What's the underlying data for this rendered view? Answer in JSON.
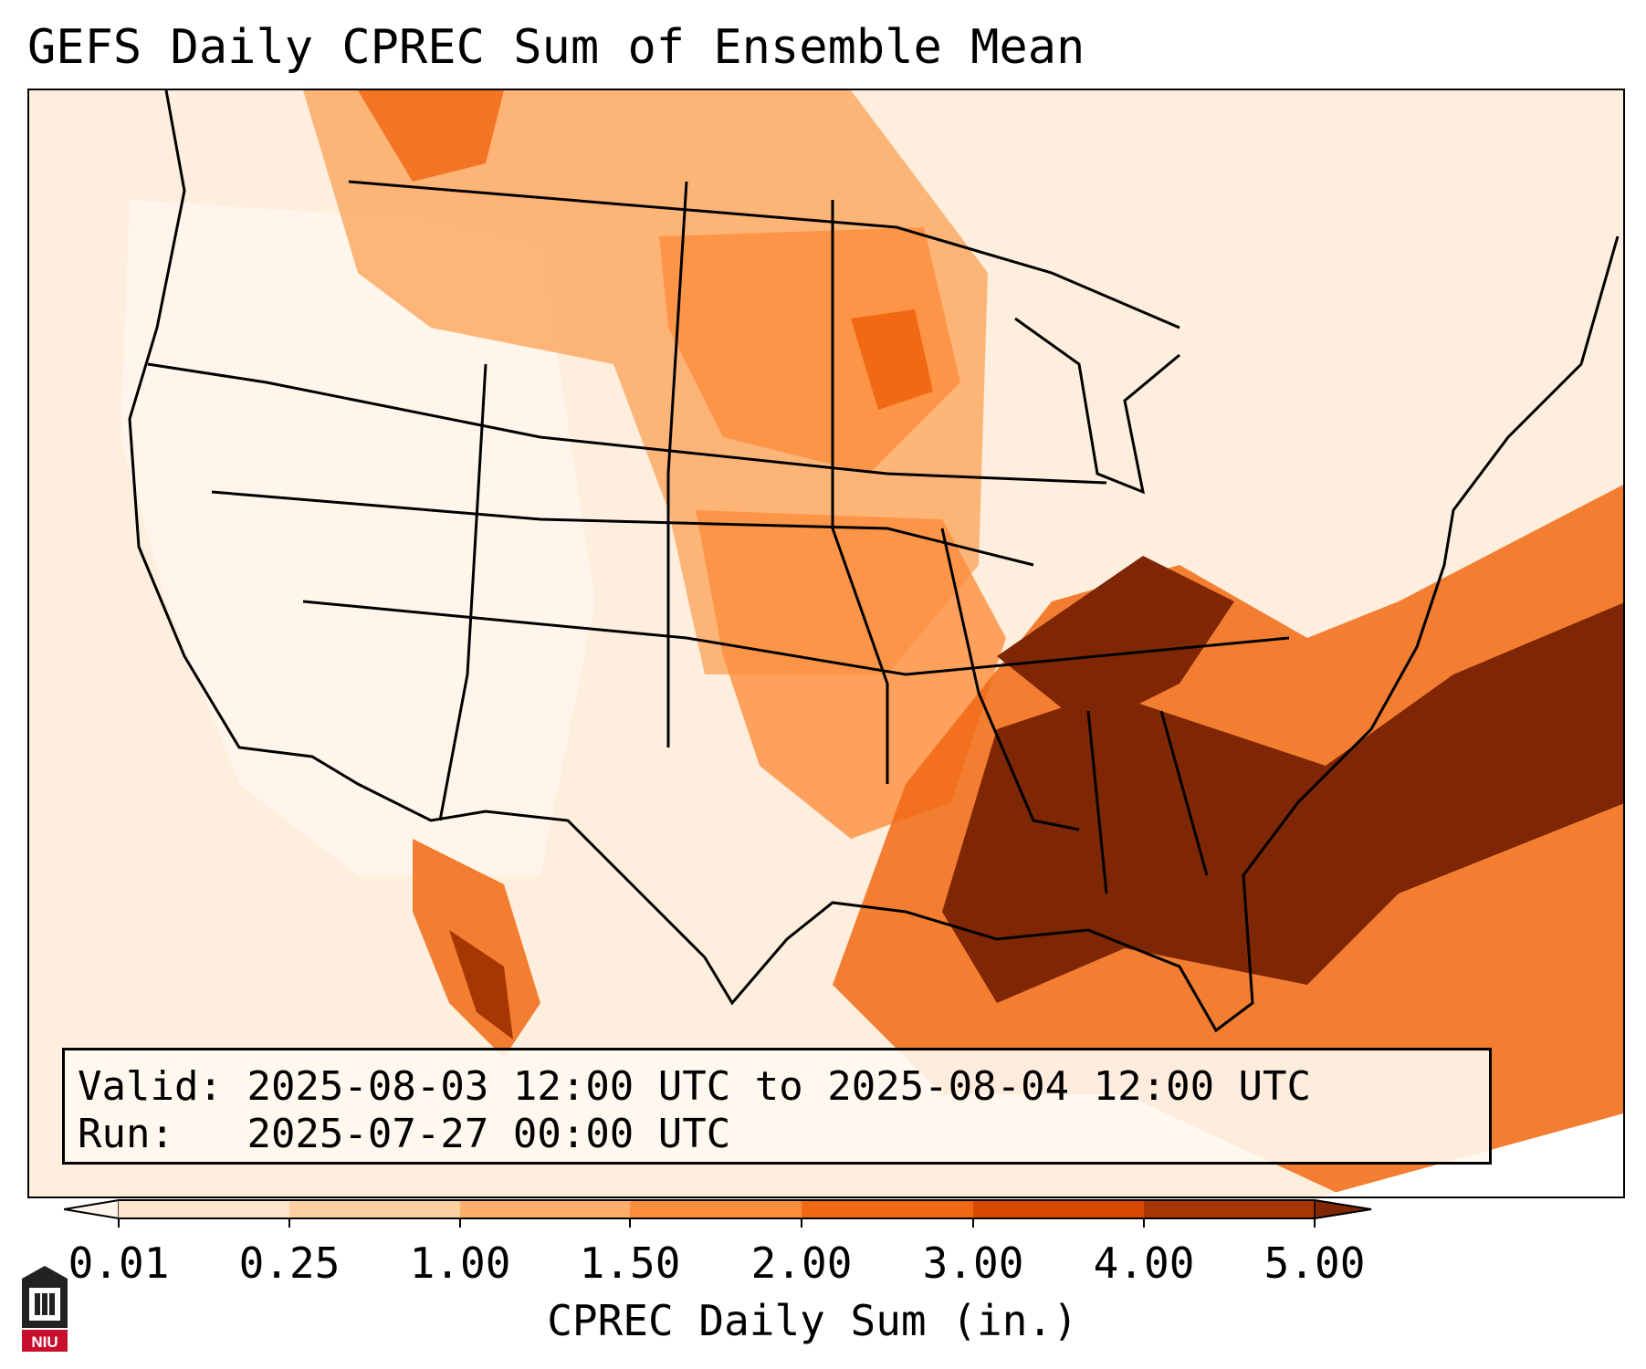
{
  "title": "GEFS Daily CPREC Sum of Ensemble Mean",
  "info": {
    "valid_label": "Valid:",
    "valid_value": "2025-08-03 12:00 UTC to 2025-08-04 12:00 UTC",
    "run_label": "Run:",
    "run_value": "2025-07-27 00:00 UTC"
  },
  "colorbar": {
    "label": "CPREC Daily Sum (in.)",
    "ticks": [
      "0.01",
      "0.25",
      "1.00",
      "1.50",
      "2.00",
      "3.00",
      "4.00",
      "5.00"
    ],
    "colors": [
      "#fff5eb",
      "#fee6ce",
      "#fdd0a2",
      "#fdae6b",
      "#fd8d3c",
      "#f16913",
      "#d94801",
      "#a63603",
      "#7f2704"
    ],
    "extend": "both"
  },
  "logo": {
    "text": "NIU",
    "color": "#c8102e"
  }
}
